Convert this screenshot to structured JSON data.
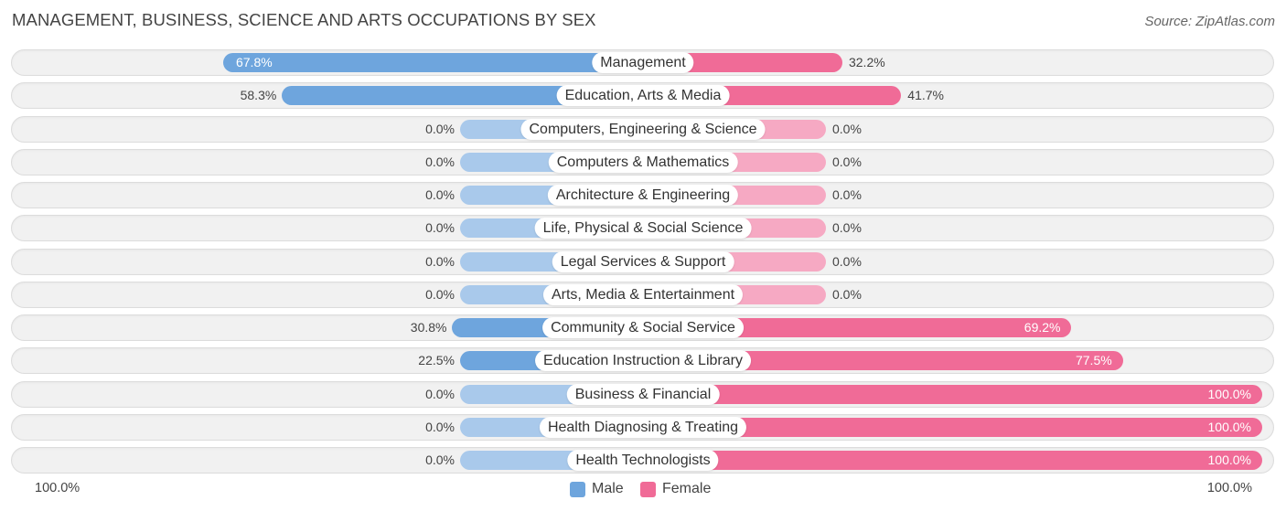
{
  "title": "MANAGEMENT, BUSINESS, SCIENCE AND ARTS OCCUPATIONS BY SEX",
  "source": "Source: ZipAtlas.com",
  "axis": {
    "left_label": "100.0%",
    "right_label": "100.0%"
  },
  "legend": {
    "male": "Male",
    "female": "Female"
  },
  "colors": {
    "male_strong": "#6ea5dd",
    "male_light": "#a9c9eb",
    "female_strong": "#f06b97",
    "female_light": "#f6a9c3"
  },
  "chart_data": {
    "type": "bar",
    "orientation": "horizontal-diverging",
    "categories": [
      "Management",
      "Education, Arts & Media",
      "Computers, Engineering & Science",
      "Computers & Mathematics",
      "Architecture & Engineering",
      "Life, Physical & Social Science",
      "Legal Services & Support",
      "Arts, Media & Entertainment",
      "Community & Social Service",
      "Education Instruction & Library",
      "Business & Financial",
      "Health Diagnosing & Treating",
      "Health Technologists"
    ],
    "series": [
      {
        "name": "Male",
        "values": [
          67.8,
          58.3,
          0.0,
          0.0,
          0.0,
          0.0,
          0.0,
          0.0,
          30.8,
          22.5,
          0.0,
          0.0,
          0.0
        ],
        "labels": [
          "67.8%",
          "58.3%",
          "0.0%",
          "0.0%",
          "0.0%",
          "0.0%",
          "0.0%",
          "0.0%",
          "30.8%",
          "22.5%",
          "0.0%",
          "0.0%",
          "0.0%"
        ]
      },
      {
        "name": "Female",
        "values": [
          32.2,
          41.7,
          0.0,
          0.0,
          0.0,
          0.0,
          0.0,
          0.0,
          69.2,
          77.5,
          100.0,
          100.0,
          100.0
        ],
        "labels": [
          "32.2%",
          "41.7%",
          "0.0%",
          "0.0%",
          "0.0%",
          "0.0%",
          "0.0%",
          "0.0%",
          "69.2%",
          "77.5%",
          "100.0%",
          "100.0%",
          "100.0%"
        ]
      }
    ],
    "xlim": [
      -100,
      100
    ],
    "legend_position": "bottom-center",
    "grid": false
  }
}
